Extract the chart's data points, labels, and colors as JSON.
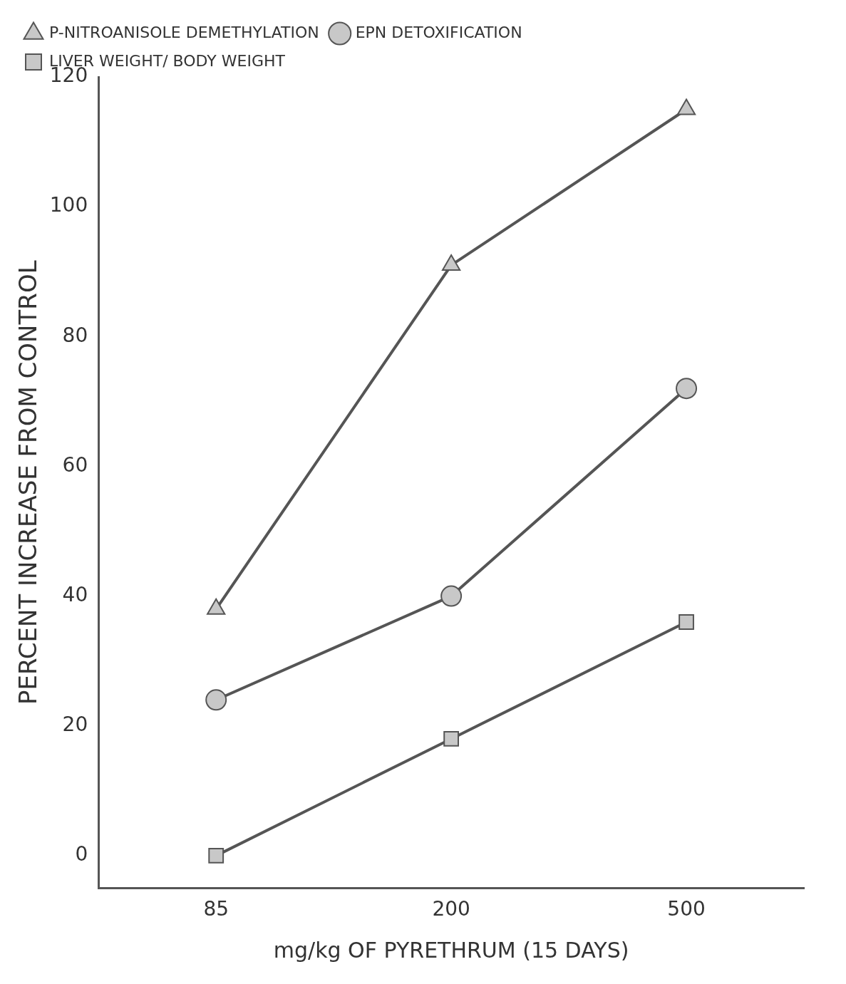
{
  "chart_data": {
    "type": "line",
    "xlabel": "mg/kg OF PYRETHRUM (15 DAYS)",
    "ylabel": "PERCENT INCREASE FROM CONTROL",
    "categories": [
      "85",
      "200",
      "500"
    ],
    "series": [
      {
        "name": "P-NITROANISOLE DEMETHYLATION",
        "color": "#555555",
        "marker": "triangle",
        "values": [
          38,
          91,
          115
        ]
      },
      {
        "name": "EPN DETOXIFICATION",
        "color": "#555555",
        "marker": "circle",
        "values": [
          24,
          40,
          72
        ]
      },
      {
        "name": "LIVER WEIGHT/ BODY WEIGHT",
        "color": "#555555",
        "marker": "square",
        "values": [
          0,
          18,
          36
        ]
      }
    ],
    "ylim": [
      -5,
      120
    ],
    "yticks": [
      0,
      20,
      40,
      60,
      80,
      100,
      120
    ],
    "grid": false,
    "legend": "top left",
    "line_style": "solid"
  }
}
